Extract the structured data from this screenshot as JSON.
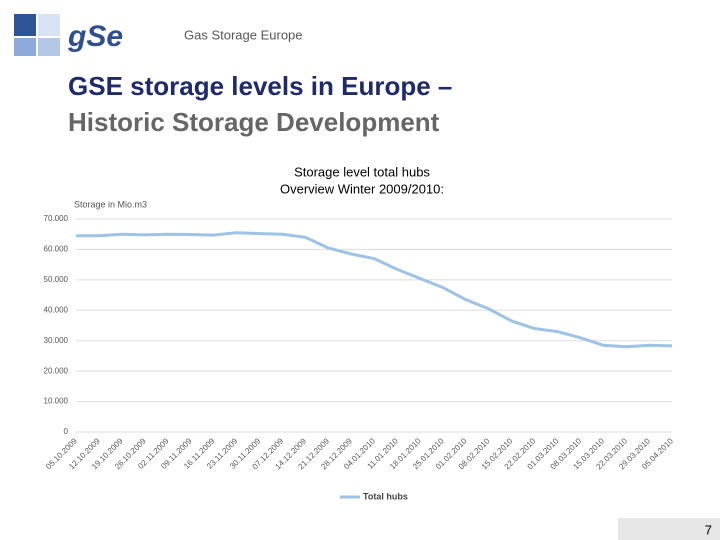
{
  "slide": {
    "logo": "gSe",
    "logo_caption": "Gas Storage Europe",
    "title": "GSE storage levels in Europe –",
    "subtitle": "Historic Storage Development",
    "page_number": "7"
  },
  "chart_data": {
    "type": "line",
    "title": "Storage level total hubs",
    "subtitle": "Overview Winter 2009/2010:",
    "y_label": "Storage in Mio.m3",
    "categories": [
      "05.10.2009",
      "12.10.2009",
      "19.10.2009",
      "26.10.2009",
      "02.11.2009",
      "09.11.2009",
      "16.11.2009",
      "23.11.2009",
      "30.11.2009",
      "07.12.2009",
      "14.12.2009",
      "21.12.2009",
      "28.12.2009",
      "04.01.2010",
      "11.01.2010",
      "18.01.2010",
      "25.01.2010",
      "01.02.2010",
      "08.02.2010",
      "15.02.2010",
      "22.02.2010",
      "01.03.2010",
      "08.03.2010",
      "15.03.2010",
      "22.03.2010",
      "29.03.2010",
      "05.04.2010"
    ],
    "series": [
      {
        "name": "Total hubs",
        "color": "#9dc3e6",
        "values": [
          64500,
          64500,
          65000,
          64800,
          65000,
          64900,
          64700,
          65500,
          65200,
          65000,
          64000,
          60500,
          58500,
          57000,
          53500,
          50500,
          47500,
          43500,
          40500,
          36500,
          34000,
          33000,
          31000,
          28500,
          28000,
          28500,
          28300
        ]
      }
    ],
    "ylim": [
      0,
      70000
    ],
    "yticks": [
      0,
      {
        "value": 10000,
        "label": "10.000"
      },
      {
        "value": 20000,
        "label": "20.000"
      },
      {
        "value": 30000,
        "label": "30.000"
      },
      {
        "value": 40000,
        "label": "40.000"
      },
      {
        "value": 50000,
        "label": "50.000"
      },
      {
        "value": 60000,
        "label": "60.000"
      },
      {
        "value": 70000,
        "label": "70.000"
      }
    ],
    "grid": true
  }
}
